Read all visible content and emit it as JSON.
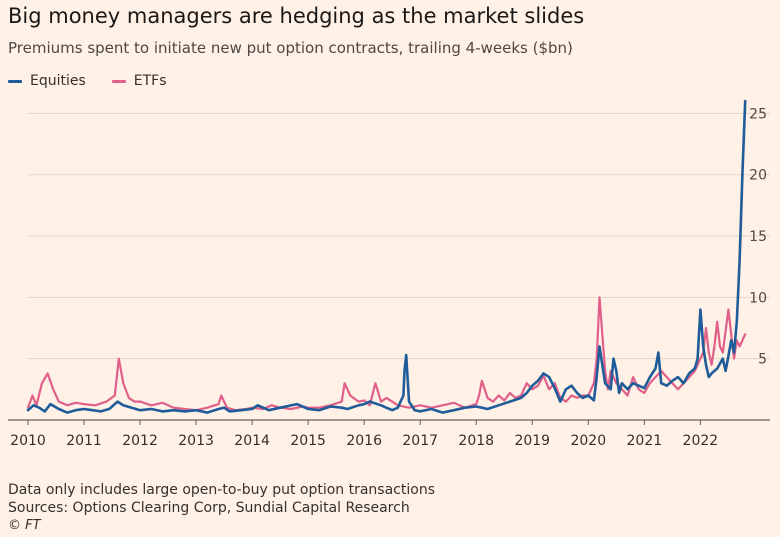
{
  "title": "Big money managers are hedging as the market slides",
  "subtitle": "Premiums spent to initiate new put option contracts, trailing 4-weeks ($bn)",
  "legend": [
    {
      "label": "Equities",
      "color": "#1f5c99"
    },
    {
      "label": "ETFs",
      "color": "#e0608a"
    }
  ],
  "footnotes": {
    "note": "Data only includes large open-to-buy put option transactions",
    "sources": "Sources: Options Clearing Corp, Sundial Capital Research",
    "copyright": "© FT"
  },
  "chart_data": {
    "type": "line",
    "xlim": [
      2010,
      2022.85
    ],
    "ylim": [
      0,
      26.5
    ],
    "x_ticks": [
      "2010",
      "2011",
      "2012",
      "2013",
      "2014",
      "2015",
      "2016",
      "2017",
      "2018",
      "2019",
      "2020",
      "2021",
      "2022"
    ],
    "y_ticks": [
      "5",
      "10",
      "15",
      "20",
      "25"
    ],
    "grid": true,
    "legend_position": "top-left",
    "series": [
      {
        "name": "Equities",
        "color": "#1f5c99",
        "x": [
          2010.0,
          2010.1,
          2010.2,
          2010.3,
          2010.4,
          2010.55,
          2010.7,
          2010.85,
          2011.0,
          2011.15,
          2011.3,
          2011.45,
          2011.6,
          2011.7,
          2011.85,
          2012.0,
          2012.2,
          2012.4,
          2012.6,
          2012.8,
          2013.0,
          2013.2,
          2013.4,
          2013.5,
          2013.6,
          2013.8,
          2014.0,
          2014.1,
          2014.3,
          2014.5,
          2014.6,
          2014.8,
          2015.0,
          2015.2,
          2015.4,
          2015.6,
          2015.7,
          2015.9,
          2016.0,
          2016.1,
          2016.3,
          2016.5,
          2016.6,
          2016.7,
          2016.72,
          2016.75,
          2016.8,
          2016.9,
          2017.0,
          2017.2,
          2017.4,
          2017.6,
          2017.8,
          2018.0,
          2018.1,
          2018.2,
          2018.4,
          2018.6,
          2018.8,
          2018.9,
          2019.0,
          2019.1,
          2019.2,
          2019.3,
          2019.4,
          2019.5,
          2019.6,
          2019.7,
          2019.8,
          2019.9,
          2020.0,
          2020.1,
          2020.15,
          2020.2,
          2020.25,
          2020.3,
          2020.4,
          2020.45,
          2020.5,
          2020.55,
          2020.6,
          2020.7,
          2020.8,
          2020.9,
          2021.0,
          2021.1,
          2021.2,
          2021.25,
          2021.3,
          2021.4,
          2021.5,
          2021.6,
          2021.7,
          2021.8,
          2021.9,
          2021.95,
          2022.0,
          2022.05,
          2022.1,
          2022.15,
          2022.2,
          2022.3,
          2022.4,
          2022.45,
          2022.5,
          2022.55,
          2022.6,
          2022.65,
          2022.7,
          2022.75,
          2022.8
        ],
        "values": [
          0.8,
          1.2,
          1.0,
          0.7,
          1.3,
          0.9,
          0.6,
          0.8,
          0.9,
          0.8,
          0.7,
          0.9,
          1.5,
          1.2,
          1.0,
          0.8,
          0.9,
          0.7,
          0.8,
          0.7,
          0.8,
          0.6,
          0.9,
          1.0,
          0.7,
          0.8,
          0.9,
          1.2,
          0.8,
          1.0,
          1.1,
          1.3,
          0.9,
          0.8,
          1.1,
          1.0,
          0.9,
          1.2,
          1.3,
          1.5,
          1.2,
          0.8,
          1.0,
          2.0,
          4.0,
          5.3,
          1.5,
          0.8,
          0.7,
          0.9,
          0.6,
          0.8,
          1.0,
          1.1,
          1.0,
          0.9,
          1.2,
          1.5,
          1.8,
          2.2,
          2.8,
          3.2,
          3.8,
          3.5,
          2.6,
          1.5,
          2.5,
          2.8,
          2.2,
          1.8,
          2.0,
          1.6,
          3.5,
          6.0,
          4.5,
          3.0,
          2.5,
          5.0,
          4.0,
          2.2,
          3.0,
          2.5,
          3.0,
          2.8,
          2.6,
          3.5,
          4.2,
          5.5,
          3.0,
          2.8,
          3.2,
          3.5,
          3.0,
          3.8,
          4.2,
          5.0,
          9.0,
          6.0,
          4.5,
          3.5,
          3.8,
          4.2,
          5.0,
          4.0,
          5.2,
          6.5,
          5.5,
          8.0,
          13.0,
          20.0,
          26.0
        ]
      },
      {
        "name": "ETFs",
        "color": "#e0608a",
        "x": [
          2010.0,
          2010.08,
          2010.15,
          2010.25,
          2010.35,
          2010.45,
          2010.55,
          2010.7,
          2010.85,
          2011.0,
          2011.2,
          2011.4,
          2011.55,
          2011.62,
          2011.7,
          2011.8,
          2011.9,
          2012.0,
          2012.2,
          2012.4,
          2012.6,
          2012.8,
          2013.0,
          2013.2,
          2013.4,
          2013.45,
          2013.55,
          2013.7,
          2013.9,
          2014.0,
          2014.2,
          2014.35,
          2014.5,
          2014.7,
          2014.9,
          2015.0,
          2015.2,
          2015.4,
          2015.6,
          2015.65,
          2015.75,
          2015.9,
          2016.0,
          2016.1,
          2016.2,
          2016.3,
          2016.4,
          2016.6,
          2016.8,
          2017.0,
          2017.2,
          2017.4,
          2017.6,
          2017.8,
          2018.0,
          2018.05,
          2018.1,
          2018.2,
          2018.3,
          2018.4,
          2018.5,
          2018.6,
          2018.7,
          2018.8,
          2018.9,
          2019.0,
          2019.1,
          2019.2,
          2019.3,
          2019.4,
          2019.5,
          2019.6,
          2019.7,
          2019.8,
          2019.9,
          2020.0,
          2020.1,
          2020.15,
          2020.2,
          2020.25,
          2020.3,
          2020.35,
          2020.4,
          2020.5,
          2020.6,
          2020.7,
          2020.8,
          2020.9,
          2021.0,
          2021.1,
          2021.2,
          2021.3,
          2021.4,
          2021.5,
          2021.6,
          2021.7,
          2021.8,
          2021.9,
          2022.0,
          2022.05,
          2022.1,
          2022.15,
          2022.2,
          2022.25,
          2022.3,
          2022.35,
          2022.4,
          2022.5,
          2022.55,
          2022.6,
          2022.65,
          2022.7,
          2022.8
        ],
        "values": [
          1.0,
          2.0,
          1.2,
          3.0,
          3.8,
          2.5,
          1.5,
          1.2,
          1.4,
          1.3,
          1.2,
          1.5,
          2.0,
          5.0,
          3.0,
          1.8,
          1.5,
          1.5,
          1.2,
          1.4,
          1.0,
          0.9,
          0.8,
          1.0,
          1.3,
          2.0,
          1.0,
          0.8,
          0.9,
          1.0,
          0.9,
          1.2,
          1.0,
          0.9,
          1.1,
          1.0,
          1.0,
          1.2,
          1.5,
          3.0,
          2.0,
          1.5,
          1.6,
          1.2,
          3.0,
          1.5,
          1.8,
          1.2,
          1.0,
          1.2,
          1.0,
          1.2,
          1.4,
          1.0,
          1.3,
          2.0,
          3.2,
          1.8,
          1.5,
          2.0,
          1.6,
          2.2,
          1.8,
          2.0,
          3.0,
          2.5,
          2.8,
          3.6,
          2.5,
          3.0,
          1.8,
          1.5,
          2.0,
          1.8,
          2.0,
          2.0,
          3.0,
          5.0,
          10.0,
          7.0,
          4.0,
          2.5,
          4.0,
          3.0,
          2.5,
          2.0,
          3.5,
          2.5,
          2.2,
          3.0,
          3.5,
          4.0,
          3.5,
          3.0,
          2.5,
          3.0,
          3.5,
          4.0,
          5.0,
          5.5,
          7.5,
          5.5,
          4.5,
          6.0,
          8.0,
          6.0,
          5.5,
          9.0,
          7.0,
          5.0,
          6.5,
          6.0,
          7.0
        ]
      }
    ]
  }
}
